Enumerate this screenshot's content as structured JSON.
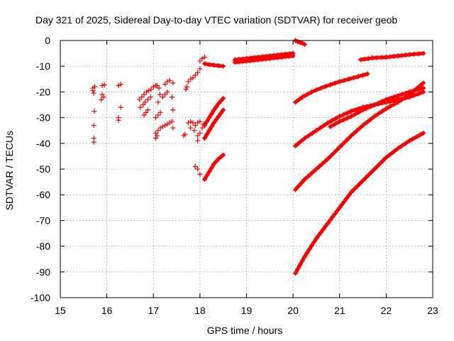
{
  "chart_data": {
    "type": "scatter",
    "title": "Day 321 of 2025, Sidereal Day-to-day VTEC variation (SDTVAR) for receiver geob",
    "xlabel": "GPS time / hours",
    "ylabel": "SDTVAR / TECUs",
    "xlim": [
      15,
      23
    ],
    "ylim": [
      -100,
      0
    ],
    "xticks": [
      "15",
      "16",
      "17",
      "18",
      "19",
      "20",
      "21",
      "22",
      "23"
    ],
    "yticks": [
      "0",
      "-10",
      "-20",
      "-30",
      "-40",
      "-50",
      "-60",
      "-70",
      "-80",
      "-90",
      "-100"
    ],
    "grid": true,
    "marker": "+",
    "color": "#ff0000",
    "series": [
      {
        "name": "scatter-cluster",
        "points": [
          [
            15.7,
            -18.5
          ],
          [
            15.7,
            -19.5
          ],
          [
            15.72,
            -20.5
          ],
          [
            15.74,
            -18.0
          ],
          [
            15.73,
            -27.5
          ],
          [
            15.72,
            -33.0
          ],
          [
            15.72,
            -38.0
          ],
          [
            15.72,
            -39.5
          ],
          [
            15.9,
            -17.5
          ],
          [
            15.95,
            -17.2
          ],
          [
            15.9,
            -21.0
          ],
          [
            15.93,
            -22.0
          ],
          [
            15.88,
            -23.0
          ],
          [
            16.25,
            -17.5
          ],
          [
            16.3,
            -17.0
          ],
          [
            16.3,
            -26.0
          ],
          [
            16.25,
            -30.0
          ],
          [
            16.25,
            -31.0
          ],
          [
            16.7,
            -23.0
          ],
          [
            16.75,
            -22.0
          ],
          [
            16.8,
            -21.0
          ],
          [
            16.85,
            -20.0
          ],
          [
            16.9,
            -19.5
          ],
          [
            16.95,
            -19.0
          ],
          [
            17.0,
            -18.0
          ],
          [
            17.05,
            -17.5
          ],
          [
            16.72,
            -26.0
          ],
          [
            16.78,
            -25.0
          ],
          [
            16.82,
            -24.0
          ],
          [
            16.88,
            -23.0
          ],
          [
            16.94,
            -22.0
          ],
          [
            16.8,
            -29.0
          ],
          [
            16.84,
            -28.0
          ],
          [
            16.88,
            -27.0
          ],
          [
            17.08,
            -17.5
          ],
          [
            17.12,
            -18.5
          ],
          [
            17.1,
            -24.0
          ],
          [
            17.14,
            -21.0
          ],
          [
            17.05,
            -30.0
          ],
          [
            17.1,
            -29.0
          ],
          [
            17.15,
            -28.0
          ],
          [
            17.05,
            -36.0
          ],
          [
            17.1,
            -35.0
          ],
          [
            17.15,
            -34.0
          ],
          [
            17.2,
            -33.5
          ],
          [
            17.25,
            -33.0
          ],
          [
            17.3,
            -32.5
          ],
          [
            17.35,
            -32.0
          ],
          [
            17.4,
            -31.5
          ],
          [
            17.05,
            -38.0
          ],
          [
            17.08,
            -37.0
          ],
          [
            17.2,
            -22.0
          ],
          [
            17.25,
            -21.0
          ],
          [
            17.3,
            -20.0
          ],
          [
            17.25,
            -17.0
          ],
          [
            17.3,
            -16.0
          ],
          [
            17.35,
            -15.5
          ],
          [
            17.42,
            -16.5
          ],
          [
            17.4,
            -22.0
          ],
          [
            17.42,
            -34.0
          ],
          [
            17.42,
            -27.0
          ],
          [
            17.65,
            -37.0
          ],
          [
            17.68,
            -36.5
          ],
          [
            17.7,
            -19.0
          ],
          [
            17.72,
            -18.0
          ],
          [
            17.75,
            -16.0
          ],
          [
            17.8,
            -15.0
          ],
          [
            17.85,
            -14.5
          ],
          [
            17.9,
            -13.5
          ],
          [
            17.95,
            -12.5
          ],
          [
            18.0,
            -11.0
          ],
          [
            17.75,
            -32.0
          ],
          [
            17.8,
            -31.5
          ],
          [
            17.85,
            -32.0
          ],
          [
            17.8,
            -34.0
          ],
          [
            17.9,
            -33.0
          ],
          [
            17.95,
            -32.0
          ],
          [
            18.0,
            -31.5
          ],
          [
            17.88,
            -35.0
          ],
          [
            17.95,
            -37.0
          ],
          [
            17.95,
            -39.0
          ],
          [
            18.0,
            -36.0
          ],
          [
            18.05,
            -34.0
          ],
          [
            18.08,
            -32.5
          ],
          [
            17.95,
            -50.0
          ],
          [
            17.9,
            -49.0
          ],
          [
            18.0,
            -52.0
          ],
          [
            18.0,
            -8.0
          ],
          [
            18.05,
            -7.0
          ],
          [
            18.1,
            -6.5
          ]
        ]
      },
      {
        "name": "arc-18-a",
        "points": [
          [
            18.1,
            -33.0
          ],
          [
            18.2,
            -30.0
          ],
          [
            18.3,
            -27.0
          ],
          [
            18.4,
            -24.5
          ],
          [
            18.5,
            -22.5
          ]
        ]
      },
      {
        "name": "arc-18-b",
        "points": [
          [
            18.1,
            -38.0
          ],
          [
            18.2,
            -35.0
          ],
          [
            18.3,
            -32.0
          ],
          [
            18.4,
            -29.5
          ],
          [
            18.5,
            -27.0
          ]
        ]
      },
      {
        "name": "arc-18-c",
        "points": [
          [
            18.1,
            -54.0
          ],
          [
            18.2,
            -51.0
          ],
          [
            18.3,
            -48.0
          ],
          [
            18.4,
            -46.0
          ],
          [
            18.5,
            -44.5
          ]
        ]
      },
      {
        "name": "arc-18-d",
        "points": [
          [
            18.1,
            -9.0
          ],
          [
            18.2,
            -9.4
          ],
          [
            18.3,
            -9.6
          ],
          [
            18.4,
            -9.8
          ],
          [
            18.5,
            -10.0
          ]
        ]
      },
      {
        "name": "arc-19-top",
        "points": [
          [
            18.75,
            -8.5
          ],
          [
            19.0,
            -8.0
          ],
          [
            19.25,
            -7.5
          ],
          [
            19.5,
            -7.0
          ],
          [
            19.75,
            -6.5
          ],
          [
            20.0,
            -6.0
          ]
        ]
      },
      {
        "name": "arc-19-low",
        "points": [
          [
            18.75,
            -7.5
          ],
          [
            19.0,
            -7.0
          ],
          [
            19.25,
            -6.5
          ],
          [
            19.5,
            -6.0
          ],
          [
            19.75,
            -5.5
          ],
          [
            20.0,
            -5.0
          ]
        ]
      },
      {
        "name": "arc-20-top",
        "points": [
          [
            20.05,
            0.0
          ],
          [
            20.1,
            -0.5
          ],
          [
            20.15,
            -0.8
          ],
          [
            20.2,
            -1.0
          ],
          [
            20.25,
            -1.5
          ]
        ]
      },
      {
        "name": "arc-20-a",
        "points": [
          [
            20.05,
            -24.0
          ],
          [
            20.2,
            -22.0
          ],
          [
            20.4,
            -20.0
          ],
          [
            20.6,
            -18.5
          ],
          [
            20.8,
            -17.2
          ],
          [
            21.0,
            -16.0
          ],
          [
            21.2,
            -15.0
          ],
          [
            21.4,
            -14.0
          ],
          [
            21.6,
            -13.0
          ]
        ]
      },
      {
        "name": "arc-20-b",
        "points": [
          [
            20.05,
            -41.0
          ],
          [
            20.25,
            -38.0
          ],
          [
            20.5,
            -35.0
          ],
          [
            20.75,
            -32.0
          ],
          [
            21.0,
            -29.5
          ],
          [
            21.25,
            -27.5
          ],
          [
            21.5,
            -26.0
          ],
          [
            21.75,
            -25.0
          ],
          [
            22.0,
            -24.0
          ],
          [
            22.25,
            -23.0
          ],
          [
            22.5,
            -22.0
          ],
          [
            22.8,
            -20.0
          ]
        ]
      },
      {
        "name": "arc-20-c",
        "points": [
          [
            20.05,
            -58.0
          ],
          [
            20.25,
            -54.0
          ],
          [
            20.5,
            -50.0
          ],
          [
            20.75,
            -46.0
          ],
          [
            21.0,
            -41.5
          ],
          [
            21.25,
            -37.0
          ],
          [
            21.5,
            -33.0
          ],
          [
            21.75,
            -29.5
          ],
          [
            22.0,
            -26.5
          ],
          [
            22.25,
            -24.0
          ],
          [
            22.5,
            -21.0
          ],
          [
            22.8,
            -16.5
          ]
        ]
      },
      {
        "name": "arc-20-d",
        "points": [
          [
            20.05,
            -90.5
          ],
          [
            20.25,
            -84.0
          ],
          [
            20.5,
            -77.0
          ],
          [
            20.75,
            -71.0
          ],
          [
            21.0,
            -65.0
          ],
          [
            21.25,
            -59.0
          ],
          [
            21.5,
            -54.5
          ],
          [
            21.75,
            -50.0
          ],
          [
            22.0,
            -45.5
          ],
          [
            22.25,
            -42.0
          ],
          [
            22.5,
            -39.0
          ],
          [
            22.8,
            -36.0
          ]
        ]
      },
      {
        "name": "arc-21-a",
        "points": [
          [
            20.8,
            -33.5
          ],
          [
            21.0,
            -31.5
          ],
          [
            21.25,
            -29.5
          ],
          [
            21.5,
            -27.0
          ],
          [
            21.75,
            -25.0
          ],
          [
            22.0,
            -23.0
          ],
          [
            22.25,
            -21.5
          ],
          [
            22.5,
            -20.0
          ],
          [
            22.8,
            -18.5
          ]
        ]
      },
      {
        "name": "arc-21-top",
        "points": [
          [
            21.45,
            -7.5
          ],
          [
            21.7,
            -6.8
          ],
          [
            22.0,
            -6.5
          ],
          [
            22.25,
            -6.0
          ],
          [
            22.5,
            -5.5
          ],
          [
            22.8,
            -5.0
          ]
        ]
      }
    ]
  }
}
